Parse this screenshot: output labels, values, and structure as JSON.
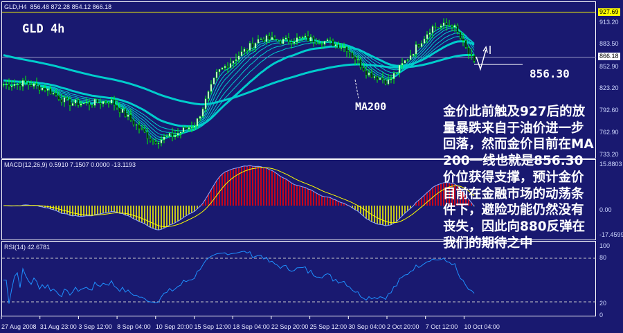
{
  "header": {
    "symbol_info": "GLD,H4  856.48 872.28 854.12 866.18",
    "chart_title": "GLD 4h"
  },
  "macd_panel": {
    "label": "MACD(12,26,9) 0.5910 7.1507 0.0000 -13.1193",
    "axis": [
      "15.8803",
      "0.00",
      "-17.4599"
    ]
  },
  "rsi_panel": {
    "label": "RSI(14) 42.6781",
    "axis": [
      "100",
      "80",
      "20",
      "0"
    ]
  },
  "price_axis": {
    "labels": [
      "913.20",
      "883.50",
      "852.90",
      "823.20",
      "792.60",
      "762.90",
      "733.20"
    ],
    "high_tag": "927.69",
    "current_tag": "866.18"
  },
  "annotations": {
    "ma200_label": "MA200",
    "support_price": "856.30",
    "note": "金价此前触及927后的放量暴跌来自于油价进一步回落，然而金价目前在MA200一线也就是856.30价位获得支撑，预计金价目前在金融市场的动荡条件下，避险功能仍然没有丧失，因此向880反弹在我们的期待之中"
  },
  "colors": {
    "background": "#191970",
    "candle": "#00ff00",
    "ma": "#00cccc",
    "high_line": "#ffff00",
    "macd_positive": "#ff0000",
    "macd_negative": "#ffff00",
    "signal": "#ffff00",
    "rsi": "#1e90ff"
  },
  "chart_data": {
    "type": "line",
    "title": "GLD 4h",
    "x_ticks": [
      "27 Aug 2008",
      "31 Aug 23:00",
      "3 Sep 12:00",
      "8 Sep 04:00",
      "10 Sep 20:00",
      "15 Sep 12:00",
      "18 Sep 04:00",
      "22 Sep 20:00",
      "25 Sep 12:00",
      "30 Sep 04:00",
      "2 Oct 20:00",
      "7 Oct 12:00",
      "10 Oct 04:00"
    ],
    "series": [
      {
        "values": [
          829,
          831,
          823,
          804,
          803,
          807,
          779,
          751,
          760,
          776,
          845,
          869,
          892,
          888,
          892,
          888,
          880,
          845,
          833,
          869,
          907,
          911,
          857
        ]
      }
    ],
    "ylim": [
      733.2,
      927.69
    ],
    "reference_lines": [
      927.69,
      866.18,
      856.3
    ],
    "rsi_levels": [
      20,
      80
    ]
  }
}
